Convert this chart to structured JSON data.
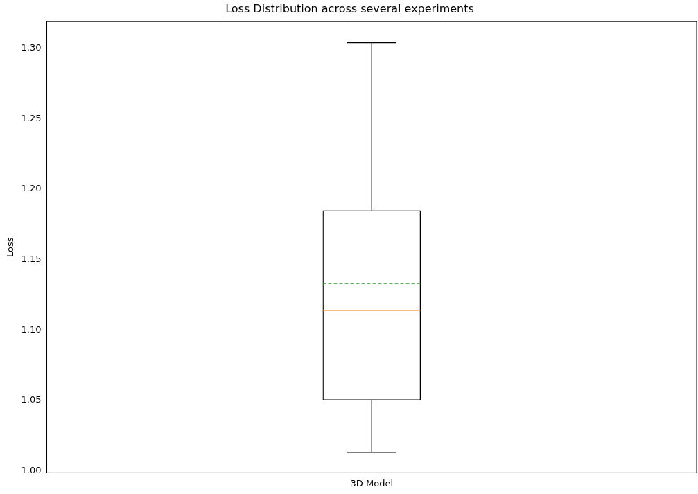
{
  "chart_data": {
    "type": "box",
    "title": "Loss Distribution across several experiments",
    "ylabel": "Loss",
    "categories": [
      "3D Model"
    ],
    "boxes": [
      {
        "low": 1.013,
        "q1": 1.05,
        "median": 1.114,
        "q3": 1.185,
        "high": 1.304,
        "mean": 1.133
      }
    ],
    "ylim": [
      0.9985,
      1.319
    ],
    "yticks": [
      {
        "value": 1.0,
        "label": "1.00"
      },
      1.05,
      {
        "value": 1.1,
        "label": "1.10"
      },
      1.15,
      {
        "value": 1.2,
        "label": "1.20"
      },
      1.25,
      {
        "value": 1.3,
        "label": "1.30"
      }
    ]
  }
}
